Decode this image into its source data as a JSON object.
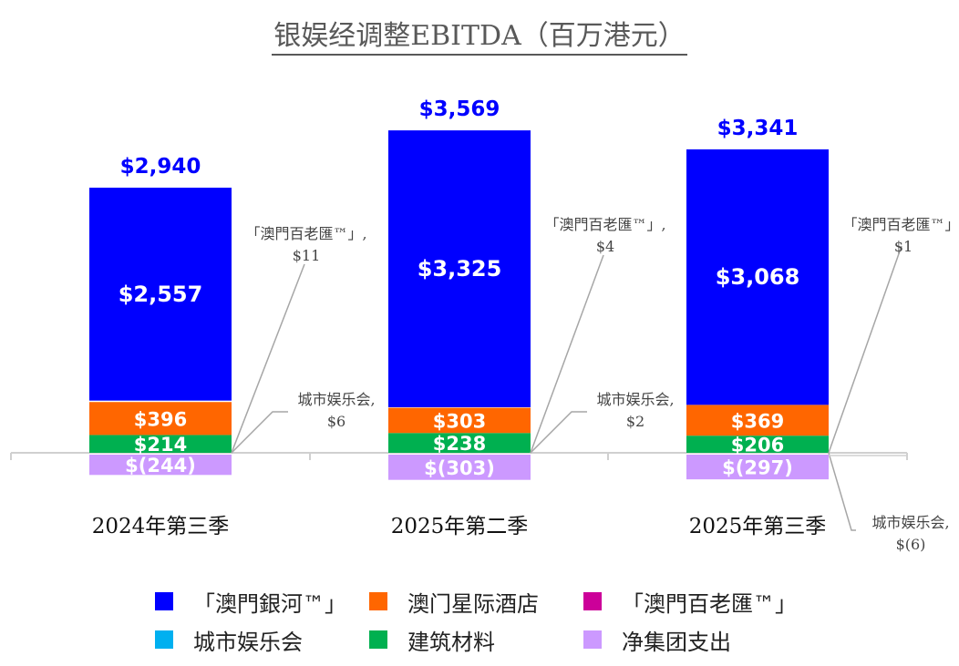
{
  "chart_data": {
    "type": "bar",
    "stacked": true,
    "title": "银娱经调整EBITDA（百万港元）",
    "categories": [
      "2024年第三季",
      "2025年第二季",
      "2025年第三季"
    ],
    "totals": [
      "$2,940",
      "$3,569",
      "$3,341"
    ],
    "total_values": [
      2940,
      3569,
      3341
    ],
    "series": [
      {
        "name": "「澳門銀河™」",
        "color": "#0000FF",
        "values": [
          2557,
          3325,
          3068
        ],
        "labels": [
          "$2,557",
          "$3,325",
          "$3,068"
        ]
      },
      {
        "name": "澳门星际酒店",
        "color": "#FF6600",
        "values": [
          396,
          303,
          369
        ],
        "labels": [
          "$396",
          "$303",
          "$369"
        ]
      },
      {
        "name": "「澳門百老匯™」",
        "color": "#CC0099",
        "values": [
          11,
          4,
          1
        ],
        "labels": [
          "「澳門百老匯™」,",
          "「澳門百老匯™」,",
          "「澳門百老匯™」,"
        ],
        "value_labels": [
          "$11",
          "$4",
          "$1"
        ]
      },
      {
        "name": "城市娱乐会",
        "color": "#00B0F0",
        "values": [
          6,
          2,
          -6
        ],
        "labels": [
          "城市娱乐会,",
          "城市娱乐会,",
          "城市娱乐会,"
        ],
        "value_labels": [
          "$6",
          "$2",
          "$(6)"
        ]
      },
      {
        "name": "建筑材料",
        "color": "#00B050",
        "values": [
          214,
          238,
          206
        ],
        "labels": [
          "$214",
          "$238",
          "$206"
        ]
      },
      {
        "name": "净集团支出",
        "color": "#CC99FF",
        "values": [
          -244,
          -303,
          -297
        ],
        "labels": [
          "$(244)",
          "$(303)",
          "$(297)"
        ]
      }
    ],
    "grid": false,
    "legend_position": "bottom",
    "total_label_color": "#0000FF"
  }
}
